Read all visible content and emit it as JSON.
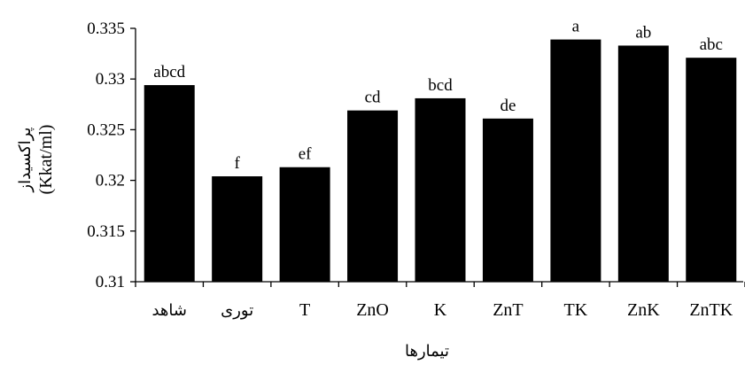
{
  "chart_data": {
    "type": "bar",
    "title": "",
    "xlabel": "تیمارها",
    "ylabel_line1": "پراکسیداز",
    "ylabel_line2": "(Kkat/ml)",
    "ylim": [
      0.31,
      0.335
    ],
    "yticks": [
      "0.31",
      "0.315",
      "0.32",
      "0.325",
      "0.33",
      "0.335"
    ],
    "ytick_values": [
      0.31,
      0.315,
      0.32,
      0.325,
      0.33,
      0.335
    ],
    "grid": false,
    "legend": "none",
    "categories": [
      "شاهد",
      "توری",
      "T",
      "ZnO",
      "K",
      "ZnT",
      "TK",
      "ZnK",
      "ZnTK"
    ],
    "values": [
      0.3294,
      0.3204,
      0.3213,
      0.3269,
      0.3281,
      0.3261,
      0.3339,
      0.3333,
      0.3321
    ],
    "bar_labels": [
      "abcd",
      "f",
      "ef",
      "cd",
      "bcd",
      "de",
      "a",
      "ab",
      "abc"
    ],
    "bar_color": "#000000"
  }
}
